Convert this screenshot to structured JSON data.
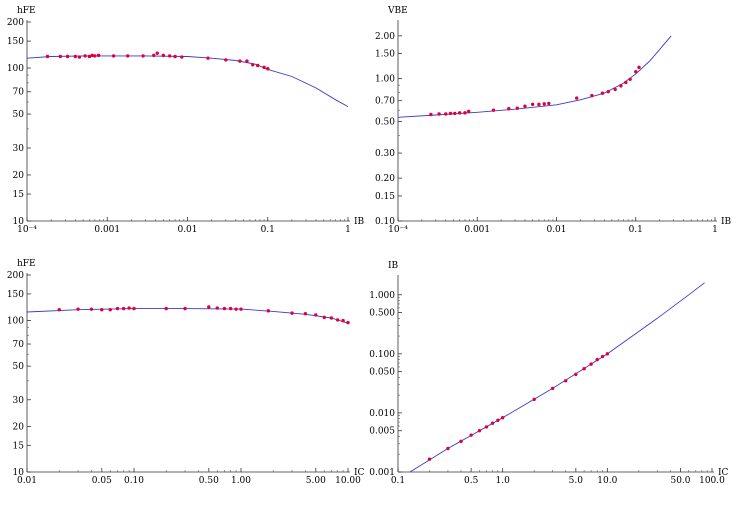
{
  "chart_data": [
    {
      "type": "scatter",
      "xlabel": "IB",
      "ylabel": "hFE",
      "xscale": "log",
      "yscale": "log",
      "xlim": [
        0.0001,
        1
      ],
      "ylim": [
        10,
        200
      ],
      "xticks": [
        {
          "v": 0.0001,
          "label": "10⁻⁴"
        },
        {
          "v": 0.001,
          "label": "0.001"
        },
        {
          "v": 0.01,
          "label": "0.01"
        },
        {
          "v": 0.1,
          "label": "0.1"
        },
        {
          "v": 1,
          "label": "1"
        }
      ],
      "yticks": [
        {
          "v": 10,
          "label": "10"
        },
        {
          "v": 15,
          "label": "15"
        },
        {
          "v": 20,
          "label": "20"
        },
        {
          "v": 30,
          "label": "30"
        },
        {
          "v": 50,
          "label": "50"
        },
        {
          "v": 70,
          "label": "70"
        },
        {
          "v": 100,
          "label": "100"
        },
        {
          "v": 150,
          "label": "150"
        },
        {
          "v": 200,
          "label": "200"
        }
      ],
      "points": [
        [
          0.00018,
          119
        ],
        [
          0.00026,
          119
        ],
        [
          0.00032,
          119
        ],
        [
          0.0004,
          119
        ],
        [
          0.00045,
          118
        ],
        [
          0.00053,
          120
        ],
        [
          0.0006,
          119
        ],
        [
          0.00065,
          121
        ],
        [
          0.0007,
          120
        ],
        [
          0.00078,
          121
        ],
        [
          0.0012,
          120
        ],
        [
          0.0018,
          120
        ],
        [
          0.0028,
          120
        ],
        [
          0.0038,
          121
        ],
        [
          0.0042,
          125
        ],
        [
          0.005,
          121
        ],
        [
          0.006,
          120
        ],
        [
          0.007,
          119
        ],
        [
          0.0085,
          118
        ],
        [
          0.018,
          116
        ],
        [
          0.03,
          113
        ],
        [
          0.045,
          111
        ],
        [
          0.055,
          111
        ],
        [
          0.065,
          105
        ],
        [
          0.075,
          104
        ],
        [
          0.09,
          101
        ],
        [
          0.1,
          99
        ]
      ],
      "curve": [
        [
          0.0001,
          116
        ],
        [
          0.0002,
          119
        ],
        [
          0.0005,
          120
        ],
        [
          0.001,
          120
        ],
        [
          0.003,
          120
        ],
        [
          0.01,
          119
        ],
        [
          0.02,
          116
        ],
        [
          0.04,
          112
        ],
        [
          0.07,
          106
        ],
        [
          0.1,
          98
        ],
        [
          0.2,
          88
        ],
        [
          0.4,
          74
        ],
        [
          0.7,
          62
        ],
        [
          1.0,
          56
        ]
      ]
    },
    {
      "type": "scatter",
      "xlabel": "IB",
      "ylabel": "VBE",
      "xscale": "log",
      "yscale": "log",
      "xlim": [
        0.0001,
        1
      ],
      "ylim": [
        0.1,
        2.5
      ],
      "xticks": [
        {
          "v": 0.0001,
          "label": "10⁻⁴"
        },
        {
          "v": 0.001,
          "label": "0.001"
        },
        {
          "v": 0.01,
          "label": "0.01"
        },
        {
          "v": 0.1,
          "label": "0.1"
        },
        {
          "v": 1,
          "label": "1"
        }
      ],
      "yticks": [
        {
          "v": 0.1,
          "label": "0.10"
        },
        {
          "v": 0.15,
          "label": "0.15"
        },
        {
          "v": 0.2,
          "label": "0.20"
        },
        {
          "v": 0.3,
          "label": "0.30"
        },
        {
          "v": 0.5,
          "label": "0.50"
        },
        {
          "v": 0.7,
          "label": "0.70"
        },
        {
          "v": 1,
          "label": "1.00"
        },
        {
          "v": 1.5,
          "label": "1.50"
        },
        {
          "v": 2,
          "label": "2.00"
        }
      ],
      "points": [
        [
          0.00026,
          0.56
        ],
        [
          0.00033,
          0.565
        ],
        [
          0.0004,
          0.565
        ],
        [
          0.00046,
          0.57
        ],
        [
          0.00052,
          0.57
        ],
        [
          0.0006,
          0.575
        ],
        [
          0.0007,
          0.575
        ],
        [
          0.00078,
          0.59
        ],
        [
          0.0016,
          0.6
        ],
        [
          0.0025,
          0.615
        ],
        [
          0.0032,
          0.62
        ],
        [
          0.004,
          0.64
        ],
        [
          0.005,
          0.66
        ],
        [
          0.006,
          0.66
        ],
        [
          0.007,
          0.665
        ],
        [
          0.008,
          0.67
        ],
        [
          0.018,
          0.73
        ],
        [
          0.028,
          0.76
        ],
        [
          0.038,
          0.79
        ],
        [
          0.045,
          0.81
        ],
        [
          0.055,
          0.84
        ],
        [
          0.065,
          0.89
        ],
        [
          0.075,
          0.94
        ],
        [
          0.085,
          0.99
        ],
        [
          0.1,
          1.12
        ],
        [
          0.11,
          1.2
        ]
      ],
      "curve": [
        [
          0.0001,
          0.535
        ],
        [
          0.0003,
          0.555
        ],
        [
          0.001,
          0.58
        ],
        [
          0.003,
          0.61
        ],
        [
          0.01,
          0.655
        ],
        [
          0.02,
          0.71
        ],
        [
          0.04,
          0.79
        ],
        [
          0.07,
          0.93
        ],
        [
          0.1,
          1.08
        ],
        [
          0.15,
          1.33
        ],
        [
          0.2,
          1.6
        ],
        [
          0.28,
          2.0
        ]
      ]
    },
    {
      "type": "scatter",
      "xlabel": "IC",
      "ylabel": "hFE",
      "xscale": "log",
      "yscale": "log",
      "xlim": [
        0.01,
        10
      ],
      "ylim": [
        10,
        200
      ],
      "xticks": [
        {
          "v": 0.01,
          "label": "0.01"
        },
        {
          "v": 0.05,
          "label": "0.05"
        },
        {
          "v": 0.1,
          "label": "0.10"
        },
        {
          "v": 0.5,
          "label": "0.50"
        },
        {
          "v": 1,
          "label": "1.00"
        },
        {
          "v": 5,
          "label": "5.00"
        },
        {
          "v": 10,
          "label": "10.00"
        }
      ],
      "yticks": [
        {
          "v": 10,
          "label": "10"
        },
        {
          "v": 15,
          "label": "15"
        },
        {
          "v": 20,
          "label": "20"
        },
        {
          "v": 30,
          "label": "30"
        },
        {
          "v": 50,
          "label": "50"
        },
        {
          "v": 70,
          "label": "70"
        },
        {
          "v": 100,
          "label": "100"
        },
        {
          "v": 150,
          "label": "150"
        },
        {
          "v": 200,
          "label": "200"
        }
      ],
      "points": [
        [
          0.02,
          118
        ],
        [
          0.03,
          119
        ],
        [
          0.04,
          119
        ],
        [
          0.05,
          118
        ],
        [
          0.06,
          118
        ],
        [
          0.07,
          120
        ],
        [
          0.08,
          120
        ],
        [
          0.09,
          121
        ],
        [
          0.1,
          120
        ],
        [
          0.2,
          120
        ],
        [
          0.3,
          120
        ],
        [
          0.5,
          123
        ],
        [
          0.6,
          121
        ],
        [
          0.7,
          120
        ],
        [
          0.8,
          120
        ],
        [
          0.9,
          119
        ],
        [
          1.0,
          119
        ],
        [
          1.8,
          116
        ],
        [
          3,
          112
        ],
        [
          4,
          111
        ],
        [
          5,
          109
        ],
        [
          6,
          105
        ],
        [
          7,
          104
        ],
        [
          8,
          101
        ],
        [
          9,
          100
        ],
        [
          10,
          97
        ]
      ],
      "curve": [
        [
          0.01,
          114
        ],
        [
          0.03,
          118
        ],
        [
          0.1,
          120
        ],
        [
          0.3,
          120
        ],
        [
          1,
          119
        ],
        [
          2,
          115
        ],
        [
          4,
          110
        ],
        [
          7,
          104
        ],
        [
          10,
          96
        ]
      ]
    },
    {
      "type": "scatter",
      "xlabel": "IC",
      "ylabel": "IB",
      "xscale": "log",
      "yscale": "log",
      "xlim": [
        0.1,
        100
      ],
      "ylim": [
        0.001,
        2
      ],
      "xticks": [
        {
          "v": 0.1,
          "label": "0.1"
        },
        {
          "v": 0.5,
          "label": "0.5"
        },
        {
          "v": 1,
          "label": "1.0"
        },
        {
          "v": 5,
          "label": "5.0"
        },
        {
          "v": 10,
          "label": "10.0"
        },
        {
          "v": 50,
          "label": "50.0"
        },
        {
          "v": 100,
          "label": "100.0"
        }
      ],
      "yticks": [
        {
          "v": 0.001,
          "label": "0.001"
        },
        {
          "v": 0.005,
          "label": "0.005"
        },
        {
          "v": 0.01,
          "label": "0.010"
        },
        {
          "v": 0.05,
          "label": "0.050"
        },
        {
          "v": 0.1,
          "label": "0.100"
        },
        {
          "v": 0.5,
          "label": "0.500"
        },
        {
          "v": 1,
          "label": "1.000"
        }
      ],
      "points": [
        [
          0.2,
          0.00165
        ],
        [
          0.3,
          0.0025
        ],
        [
          0.4,
          0.0033
        ],
        [
          0.5,
          0.0042
        ],
        [
          0.6,
          0.005
        ],
        [
          0.7,
          0.0058
        ],
        [
          0.8,
          0.0067
        ],
        [
          0.9,
          0.0075
        ],
        [
          1.0,
          0.0083
        ],
        [
          2,
          0.017
        ],
        [
          3,
          0.026
        ],
        [
          4,
          0.035
        ],
        [
          5,
          0.045
        ],
        [
          6,
          0.056
        ],
        [
          7,
          0.067
        ],
        [
          8,
          0.08
        ],
        [
          9,
          0.09
        ],
        [
          10,
          0.1
        ]
      ],
      "curve": [
        [
          0.13,
          0.001
        ],
        [
          0.3,
          0.0025
        ],
        [
          1,
          0.0083
        ],
        [
          3,
          0.026
        ],
        [
          10,
          0.1
        ],
        [
          30,
          0.4
        ],
        [
          60,
          1.0
        ],
        [
          85,
          1.6
        ]
      ]
    }
  ]
}
